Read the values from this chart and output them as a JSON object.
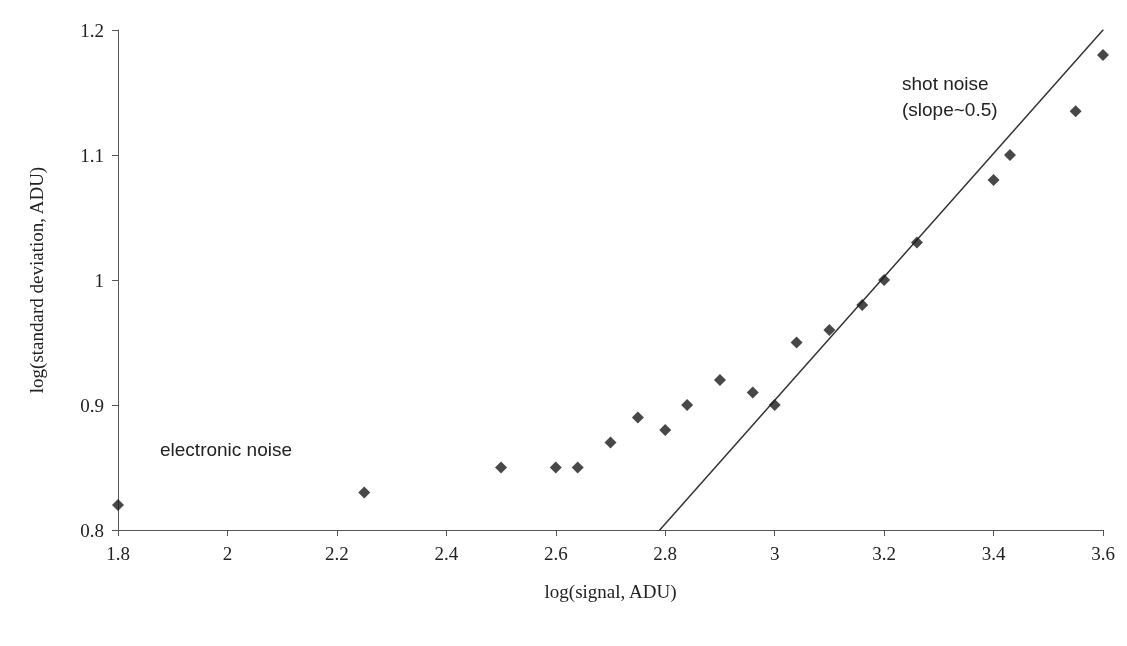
{
  "chart_data": {
    "type": "scatter",
    "xlabel": "log(signal, ADU)",
    "ylabel": "log(standard deviation, ADU)",
    "xlim": [
      1.8,
      3.6
    ],
    "xticks": [
      1.8,
      2,
      2.2,
      2.4,
      2.6,
      2.8,
      3,
      3.2,
      3.4,
      3.6
    ],
    "ylim": [
      0.8,
      1.2
    ],
    "yticks": [
      0.8,
      0.9,
      1,
      1.1,
      1.2
    ],
    "grid": false,
    "marker": "diamond",
    "series": [
      {
        "color": "#1a1a1a",
        "x": [
          1.8,
          2.25,
          2.5,
          2.6,
          2.64,
          2.7,
          2.75,
          2.8,
          2.84,
          2.9,
          2.96,
          3,
          3.04,
          3.1,
          3.16,
          3.2,
          3.26,
          3.4,
          3.43,
          3.55,
          3.6
        ],
        "values": [
          0.82,
          0.83,
          0.85,
          0.85,
          0.85,
          0.87,
          0.89,
          0.88,
          0.9,
          0.92,
          0.91,
          0.9,
          0.95,
          0.96,
          0.98,
          1,
          1.03,
          1.08,
          1.1,
          1.135,
          1.18
        ]
      },
      {
        "type": "line",
        "color": "#333333",
        "marker": "none",
        "line_style": "solid",
        "x": [
          2.79,
          3.6
        ],
        "values": [
          0.8,
          1.2
        ]
      }
    ],
    "annotations": [
      "electronic noise",
      "shot noise\n(slope~0.5)"
    ]
  }
}
